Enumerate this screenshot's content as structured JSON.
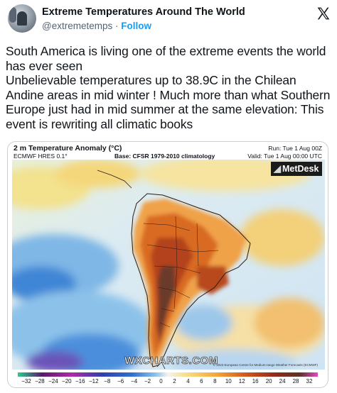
{
  "tweet": {
    "display_name": "Extreme Temperatures Around The World",
    "handle": "@extremetemps",
    "separator": "·",
    "follow_label": "Follow",
    "text": "South America is living one of the extreme events the world has ever seen\nUnbelievable temperatures up to 38.9C in the Chilean Andine areas in mid winter ! Much more than what Southern Europe just had in mid summer at the same elevation: This event is rewriting all climatic books"
  },
  "icons": {
    "avatar": "profile-avatar",
    "platform": "x-logo-icon"
  },
  "map": {
    "title": "2 m Temperature Anomaly (°C)",
    "model": "ECMWF HRES 0.1°",
    "base": "Base: CFSR 1979-2010 climatology",
    "run": "Run: Tue 1 Aug 00Z",
    "valid": "Valid: Tue 1 Aug 00:00 UTC",
    "brand_badge": "MetDesk",
    "watermark": "WXCHARTS.COM",
    "copyright": "© 2023 European Centre for Medium-range Weather Forecasts (ECMWF)",
    "scale_ticks": [
      "−32",
      "−28",
      "−24",
      "−20",
      "−16",
      "−12",
      "−8",
      "−6",
      "−4",
      "−2",
      "0",
      "2",
      "4",
      "6",
      "8",
      "10",
      "12",
      "16",
      "20",
      "24",
      "28",
      "32"
    ],
    "colors": {
      "cold_deep": "#5a1a6b",
      "cold": "#2f6fd0",
      "cool": "#8ec3ea",
      "neutral": "#f4f4f0",
      "warm": "#f4c05a",
      "hot": "#d2571e",
      "extreme": "#5e3326"
    }
  }
}
